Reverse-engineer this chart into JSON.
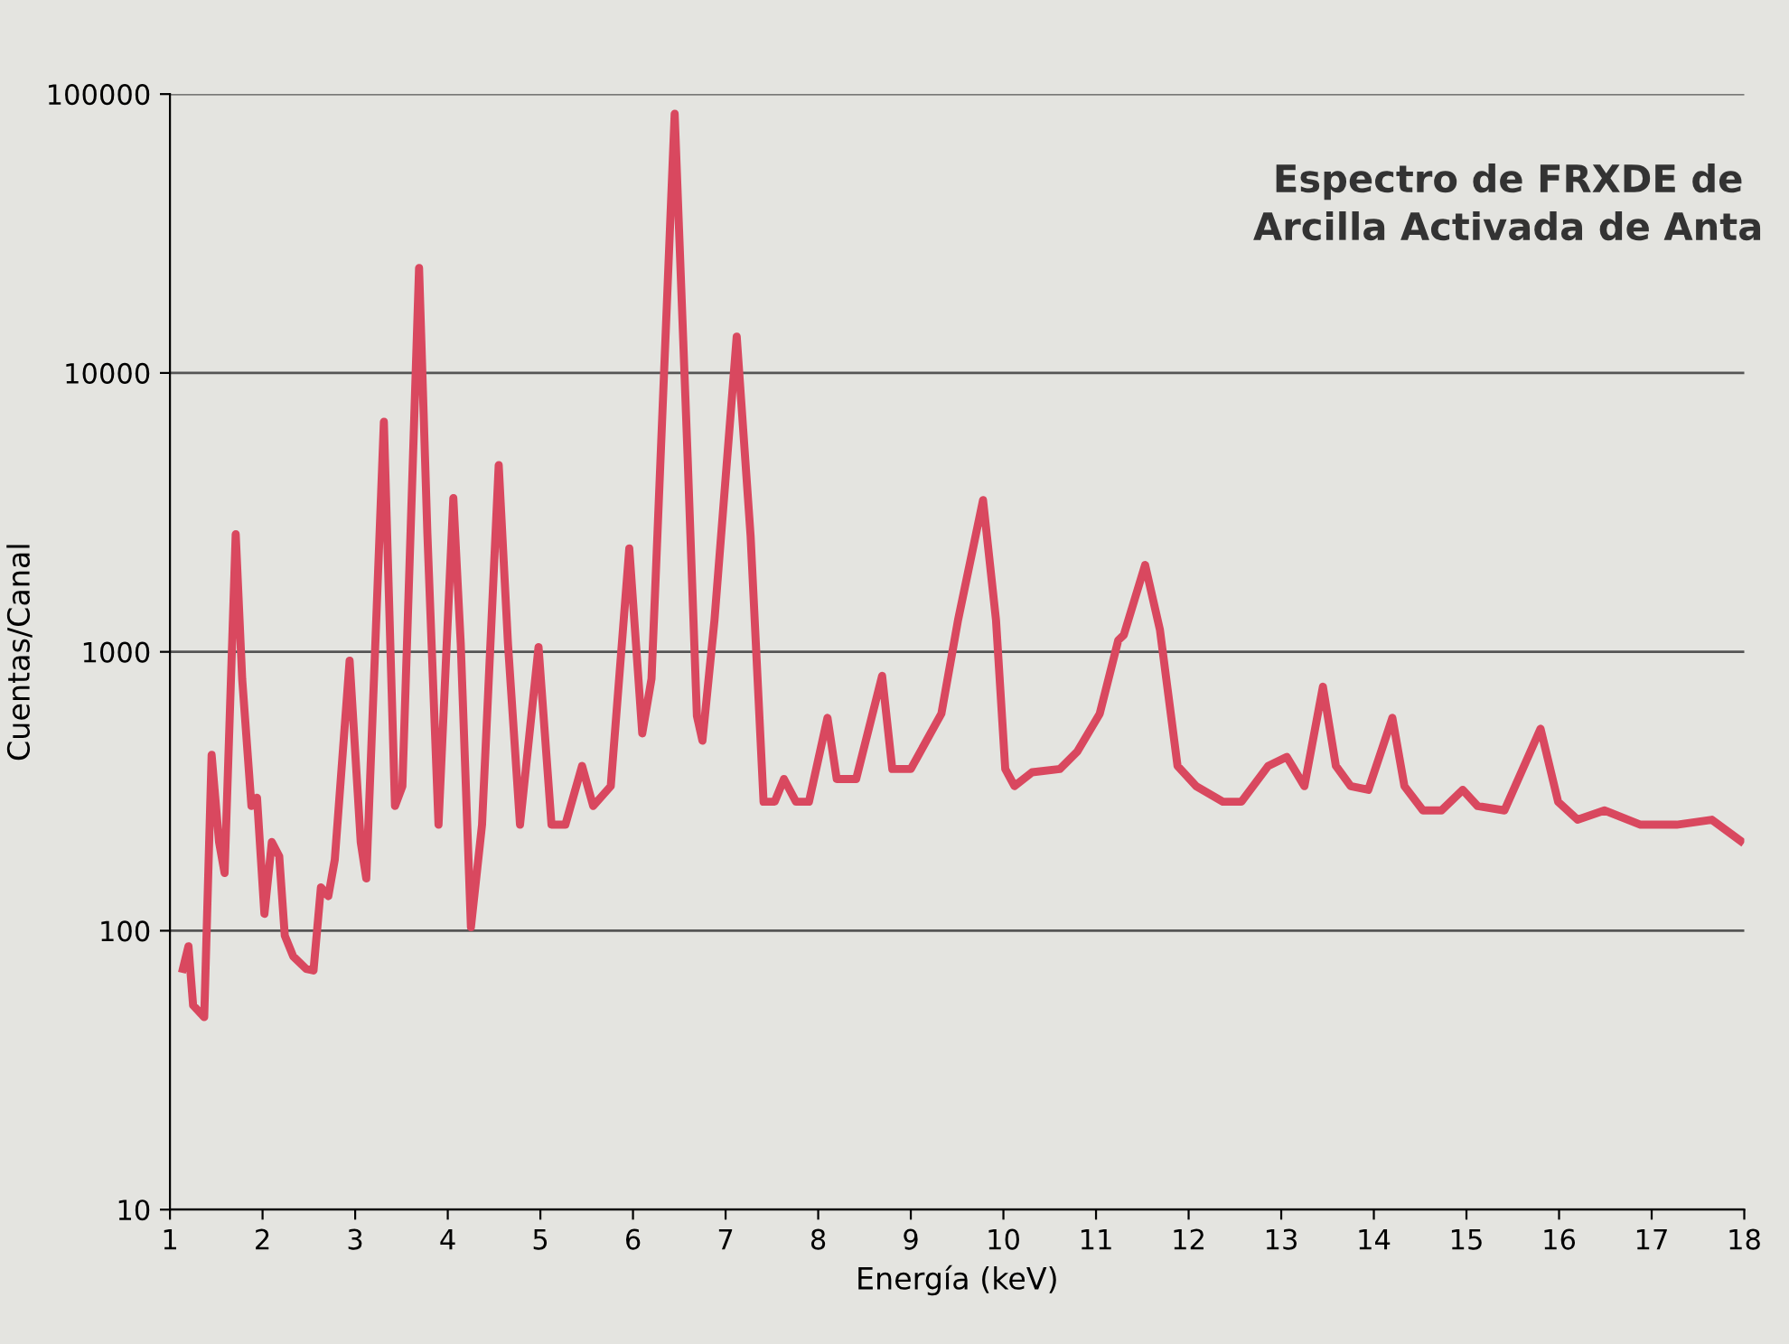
{
  "chart_data": {
    "type": "line",
    "title": "Espectro de FRXDE de\nArcilla Activada de Anta",
    "xlabel": "Energía (keV)",
    "ylabel": "Cuentas/Canal",
    "log": "y",
    "grid": "y",
    "legend": false,
    "marker": "none",
    "line_style": "solid",
    "xlim": [
      1,
      18
    ],
    "xticks": [
      1,
      2,
      3,
      4,
      5,
      6,
      7,
      8,
      9,
      10,
      11,
      12,
      13,
      14,
      15,
      16,
      17,
      18
    ],
    "ylim": [
      10,
      100000
    ],
    "yticks": [
      10,
      100,
      1000,
      10000,
      100000
    ],
    "x": [
      1.14,
      1.2,
      1.25,
      1.37,
      1.45,
      1.53,
      1.59,
      1.71,
      1.78,
      1.88,
      1.94,
      2.02,
      2.1,
      2.18,
      2.24,
      2.33,
      2.47,
      2.55,
      2.63,
      2.71,
      2.78,
      2.94,
      3.06,
      3.12,
      3.31,
      3.43,
      3.51,
      3.69,
      3.78,
      3.9,
      4.06,
      4.14,
      4.25,
      4.37,
      4.55,
      4.65,
      4.78,
      4.98,
      5.12,
      5.27,
      5.45,
      5.57,
      5.76,
      5.96,
      6.1,
      6.2,
      6.45,
      6.59,
      6.69,
      6.75,
      6.88,
      7.12,
      7.27,
      7.41,
      7.53,
      7.63,
      7.76,
      7.9,
      8.1,
      8.2,
      8.41,
      8.69,
      8.8,
      9.0,
      9.33,
      9.51,
      9.78,
      9.92,
      10.02,
      10.12,
      10.31,
      10.61,
      10.8,
      11.04,
      11.24,
      11.3,
      11.53,
      11.69,
      11.88,
      12.08,
      12.37,
      12.57,
      12.86,
      13.06,
      13.25,
      13.45,
      13.59,
      13.75,
      13.94,
      14.2,
      14.33,
      14.53,
      14.73,
      14.96,
      15.12,
      15.41,
      15.8,
      15.99,
      16.2,
      16.49,
      16.88,
      17.27,
      17.65,
      17.96
    ],
    "series": [
      {
        "color": "#d9485f",
        "values": [
          73,
          88,
          54,
          49,
          427,
          208,
          161,
          2640,
          800,
          280,
          300,
          115,
          208,
          185,
          96,
          81,
          73,
          72,
          143,
          133,
          180,
          930,
          208,
          154,
          6680,
          280,
          330,
          23800,
          2640,
          240,
          3560,
          1070,
          103,
          240,
          4670,
          1070,
          240,
          1040,
          240,
          240,
          390,
          280,
          330,
          2350,
          510,
          800,
          85000,
          5000,
          590,
          480,
          1300,
          13500,
          2600,
          290,
          290,
          350,
          290,
          290,
          580,
          350,
          350,
          820,
          380,
          380,
          600,
          1300,
          3500,
          1300,
          380,
          330,
          370,
          380,
          440,
          600,
          1100,
          1150,
          2050,
          1200,
          390,
          330,
          290,
          290,
          390,
          420,
          330,
          750,
          390,
          330,
          320,
          580,
          330,
          270,
          270,
          320,
          280,
          270,
          530,
          290,
          250,
          270,
          240,
          240,
          250,
          210
        ]
      }
    ]
  }
}
